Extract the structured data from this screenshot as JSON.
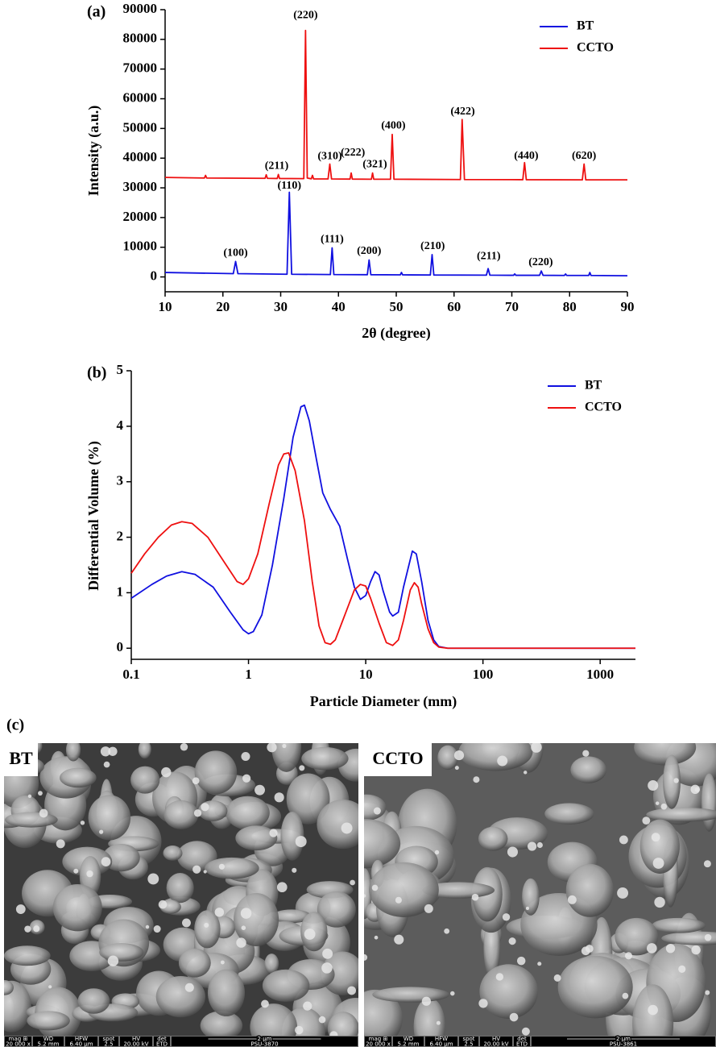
{
  "chart_data": [
    {
      "type": "line",
      "panel": "(a)",
      "x_label": "2θ (degree)",
      "y_label": "Intensity (a.u.)",
      "xlim": [
        10,
        90
      ],
      "xticks": [
        10,
        20,
        30,
        40,
        50,
        60,
        70,
        80,
        90
      ],
      "ylim": [
        -5000,
        90000
      ],
      "yticks": [
        0,
        10000,
        20000,
        30000,
        40000,
        50000,
        60000,
        70000,
        80000,
        90000
      ],
      "log_x": false,
      "legend": "upper right",
      "series": [
        {
          "name": "BT",
          "color": "#1010e0",
          "x": [
            10,
            21.8,
            22.2,
            22.6,
            31.1,
            31.5,
            31.9,
            38.6,
            38.9,
            39.2,
            45,
            45.3,
            45.6,
            50.7,
            50.9,
            51.1,
            55.9,
            56.2,
            56.5,
            65.6,
            65.9,
            66.2,
            70.3,
            70.5,
            70.7,
            74.8,
            75.1,
            75.4,
            79.1,
            79.3,
            79.5,
            83.3,
            83.5,
            83.7,
            90
          ],
          "values": [
            1500,
            1100,
            5200,
            1100,
            900,
            28500,
            900,
            800,
            9800,
            800,
            750,
            5700,
            750,
            700,
            1500,
            700,
            650,
            7500,
            650,
            600,
            2800,
            600,
            550,
            1000,
            550,
            550,
            2000,
            550,
            500,
            1000,
            500,
            500,
            1500,
            500,
            400
          ]
        },
        {
          "name": "CCTO",
          "color": "#ee1010",
          "x": [
            10,
            16.8,
            17,
            17.2,
            27.3,
            27.5,
            27.7,
            29.4,
            29.6,
            29.8,
            34,
            34.3,
            34.6,
            35.3,
            35.5,
            35.7,
            38.2,
            38.5,
            38.8,
            42,
            42.2,
            42.4,
            45.7,
            45.9,
            46.1,
            49,
            49.3,
            49.6,
            61.1,
            61.4,
            61.6,
            61.8,
            71.9,
            72.2,
            72.5,
            82.2,
            82.5,
            82.8,
            90
          ],
          "values": [
            33500,
            33300,
            34200,
            33300,
            33200,
            34400,
            33200,
            33150,
            34500,
            33150,
            33100,
            83000,
            33300,
            33050,
            34200,
            33000,
            33000,
            38000,
            33000,
            32950,
            35000,
            32950,
            32900,
            35000,
            32900,
            32900,
            48000,
            32900,
            32800,
            53000,
            43000,
            32800,
            32750,
            38500,
            32750,
            32700,
            38000,
            32700,
            32700
          ]
        }
      ],
      "annotations": [
        {
          "text": "(100)",
          "x": 22.2,
          "y": 8000
        },
        {
          "text": "(110)",
          "x": 31.5,
          "y": 30600
        },
        {
          "text": "(111)",
          "x": 38.9,
          "y": 12600
        },
        {
          "text": "(200)",
          "x": 45.3,
          "y": 8600
        },
        {
          "text": "(210)",
          "x": 56.3,
          "y": 10200
        },
        {
          "text": "(211)",
          "x": 66,
          "y": 6800
        },
        {
          "text": "(220)",
          "x": 75,
          "y": 4800
        },
        {
          "text": "(211)",
          "x": 29.3,
          "y": 37300
        },
        {
          "text": "(220)",
          "x": 34.3,
          "y": 88000
        },
        {
          "text": "(310)",
          "x": 38.5,
          "y": 40500
        },
        {
          "text": "(222)",
          "x": 42.5,
          "y": 41800
        },
        {
          "text": "(321)",
          "x": 46.3,
          "y": 37800
        },
        {
          "text": "(400)",
          "x": 49.5,
          "y": 50800
        },
        {
          "text": "(422)",
          "x": 61.5,
          "y": 55600
        },
        {
          "text": "(440)",
          "x": 72.5,
          "y": 40700
        },
        {
          "text": "(620)",
          "x": 82.5,
          "y": 40700
        }
      ]
    },
    {
      "type": "line",
      "panel": "(b)",
      "x_label": "Particle Diameter (mm)",
      "y_label": "Differential Volume (%)",
      "xlim": [
        0.1,
        2000
      ],
      "xticks": [
        0.1,
        1,
        10,
        100,
        1000
      ],
      "ylim": [
        -0.2,
        5
      ],
      "yticks": [
        0,
        1,
        2,
        3,
        4,
        5
      ],
      "log_x": true,
      "legend": "upper right",
      "series": [
        {
          "name": "BT",
          "color": "#1010e0",
          "x": [
            0.1,
            0.15,
            0.2,
            0.27,
            0.35,
            0.5,
            0.7,
            0.9,
            1.0,
            1.1,
            1.3,
            1.6,
            2.0,
            2.4,
            2.8,
            3.0,
            3.3,
            3.8,
            4.3,
            5,
            6,
            7,
            8,
            9,
            10,
            11,
            12,
            13,
            14,
            16,
            17,
            19,
            21,
            24,
            25,
            27,
            30,
            34,
            38,
            42,
            50,
            100,
            1000,
            2000
          ],
          "values": [
            0.9,
            1.15,
            1.3,
            1.38,
            1.33,
            1.1,
            0.65,
            0.33,
            0.26,
            0.3,
            0.6,
            1.5,
            2.7,
            3.8,
            4.35,
            4.38,
            4.1,
            3.4,
            2.8,
            2.5,
            2.2,
            1.6,
            1.1,
            0.88,
            0.95,
            1.2,
            1.38,
            1.32,
            1.05,
            0.65,
            0.58,
            0.65,
            1.1,
            1.6,
            1.75,
            1.7,
            1.2,
            0.5,
            0.15,
            0.03,
            0,
            0,
            0,
            0
          ]
        },
        {
          "name": "CCTO",
          "color": "#ee1010",
          "x": [
            0.1,
            0.13,
            0.17,
            0.22,
            0.27,
            0.33,
            0.45,
            0.6,
            0.8,
            0.9,
            1.0,
            1.2,
            1.5,
            1.8,
            2.0,
            2.2,
            2.5,
            3.0,
            3.5,
            4,
            4.5,
            5,
            5.5,
            6.5,
            8,
            9,
            10,
            11,
            13,
            15,
            17,
            19,
            21,
            24,
            26,
            28,
            30,
            34,
            38,
            42,
            50,
            100,
            1000,
            2000
          ],
          "values": [
            1.35,
            1.7,
            2.0,
            2.22,
            2.28,
            2.25,
            2.0,
            1.6,
            1.2,
            1.15,
            1.25,
            1.7,
            2.6,
            3.3,
            3.5,
            3.52,
            3.2,
            2.3,
            1.2,
            0.4,
            0.1,
            0.07,
            0.15,
            0.55,
            1.05,
            1.15,
            1.12,
            0.9,
            0.45,
            0.1,
            0.05,
            0.15,
            0.5,
            1.05,
            1.18,
            1.1,
            0.8,
            0.35,
            0.1,
            0.02,
            0,
            0,
            0,
            0
          ]
        }
      ]
    }
  ],
  "sem": {
    "panel": "(c)",
    "images": [
      {
        "label": "BT",
        "bar": {
          "headers": [
            "mag ⊞",
            "WD",
            "HFW",
            "spot",
            "HV",
            "det"
          ],
          "values": [
            "20 000 x",
            "5.2 mm",
            "6.40 µm",
            "2.5",
            "20.00 kV",
            "ETD"
          ],
          "scale": "2 µm",
          "id": "PSU-3870"
        }
      },
      {
        "label": "CCTO",
        "bar": {
          "headers": [
            "mag ⊞",
            "WD",
            "HFW",
            "spot",
            "HV",
            "det"
          ],
          "values": [
            "20 000 x",
            "5.2 mm",
            "6.40 µm",
            "2.5",
            "20.00 kV",
            "ETD"
          ],
          "scale": "2 µm",
          "id": "PSU-3861"
        }
      }
    ]
  }
}
